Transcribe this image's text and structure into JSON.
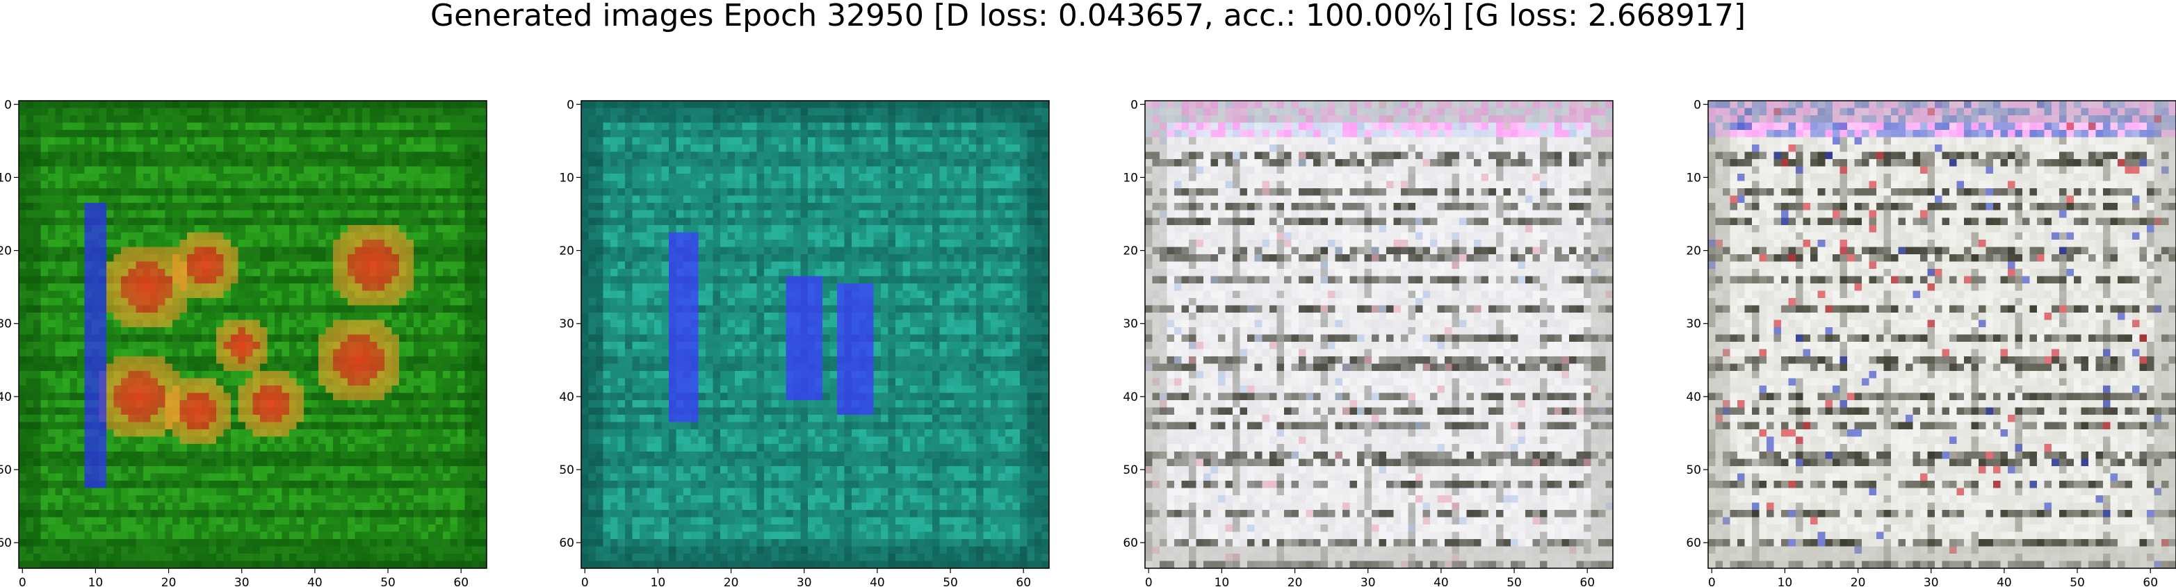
{
  "figure": {
    "title": "Generated images Epoch 32950 [D loss: 0.043657, acc.: 100.00%] [G loss: 2.668917]"
  },
  "chart_data": [
    {
      "type": "heatmap",
      "title": "",
      "xlabel": "",
      "ylabel": "",
      "xlim": [
        0,
        63
      ],
      "ylim": [
        63,
        0
      ],
      "x_ticks": [
        0,
        10,
        20,
        30,
        40,
        50,
        60
      ],
      "y_ticks": [
        0,
        10,
        20,
        30,
        40,
        50,
        60
      ],
      "grid": false,
      "palette": {
        "base": "#1f8a16",
        "dark": "#0b4d08",
        "light": "#3cc22a",
        "accent": "#ff3b1f",
        "accent2": "#f6a02a",
        "accent3": "#2a2cff"
      }
    },
    {
      "type": "heatmap",
      "title": "",
      "xlabel": "",
      "ylabel": "",
      "xlim": [
        0,
        63
      ],
      "ylim": [
        63,
        0
      ],
      "x_ticks": [
        0,
        10,
        20,
        30,
        40,
        50,
        60
      ],
      "y_ticks": [
        0,
        10,
        20,
        30,
        40,
        50,
        60
      ],
      "grid": false,
      "palette": {
        "base": "#1f9a86",
        "dark": "#0b4a45",
        "light": "#34d0b8",
        "accent": "#3a3cff",
        "accent2": "#2ab7a0",
        "accent3": "#1b6fbf"
      }
    },
    {
      "type": "heatmap",
      "title": "",
      "xlabel": "",
      "ylabel": "",
      "xlim": [
        0,
        63
      ],
      "ylim": [
        63,
        0
      ],
      "x_ticks": [
        0,
        10,
        20,
        30,
        40,
        50,
        60
      ],
      "y_ticks": [
        0,
        10,
        20,
        30,
        40,
        50,
        60
      ],
      "grid": false,
      "palette": {
        "base": "#e6e6ea",
        "dark": "#3a3a30",
        "light": "#ffffff",
        "accent": "#e8a6b8",
        "accent2": "#b0c4e8",
        "accent3": "#ff6ff2"
      }
    },
    {
      "type": "heatmap",
      "title": "",
      "xlabel": "",
      "ylabel": "",
      "xlim": [
        0,
        63
      ],
      "ylim": [
        63,
        0
      ],
      "x_ticks": [
        0,
        10,
        20,
        30,
        40,
        50,
        60
      ],
      "y_ticks": [
        0,
        10,
        20,
        30,
        40,
        50,
        60
      ],
      "grid": false,
      "palette": {
        "base": "#e2e2dc",
        "dark": "#2f2f22",
        "light": "#ffffff",
        "accent": "#d81f2b",
        "accent2": "#2a3cc8",
        "accent3": "#ff6ff2"
      }
    }
  ]
}
